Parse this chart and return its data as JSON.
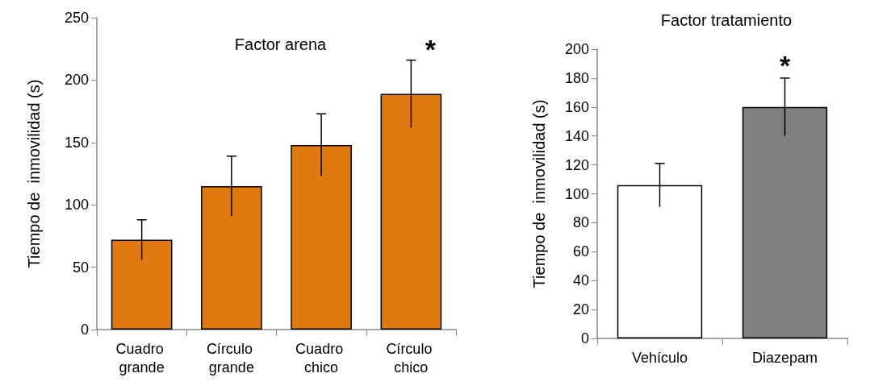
{
  "chart_data": [
    {
      "type": "bar",
      "title": "Factor arena",
      "ylabel": "Tiempo de  inmovilidad (s)",
      "categories": [
        "Cuadro grande",
        "Círculo grande",
        "Cuadro chico",
        "Círculo chico"
      ],
      "values": [
        72,
        115,
        148,
        189
      ],
      "errors": [
        16,
        24,
        25,
        27
      ],
      "color": "#e07a10",
      "ylim": [
        0,
        250
      ],
      "yticks": [
        0,
        50,
        100,
        150,
        200,
        250
      ],
      "grid": false,
      "annotations": [
        "*"
      ]
    },
    {
      "type": "bar",
      "title": "Factor tratamiento",
      "ylabel": "Tiempo de  inmovilidad (s)",
      "categories": [
        "Vehículo",
        "Diazepam"
      ],
      "values": [
        106,
        160
      ],
      "errors": [
        15,
        20
      ],
      "colors": [
        "#ffffff",
        "#808080"
      ],
      "ylim": [
        0,
        200
      ],
      "yticks": [
        0,
        20,
        40,
        60,
        80,
        100,
        120,
        140,
        160,
        180,
        200
      ],
      "grid": false,
      "annotations": [
        "*"
      ]
    }
  ]
}
